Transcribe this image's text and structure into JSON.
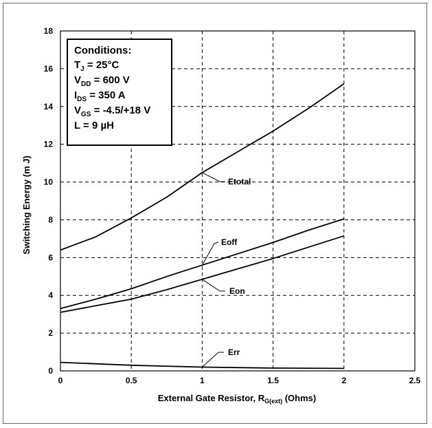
{
  "chart_data": {
    "type": "line",
    "title": "",
    "xlabel": {
      "main": "External Gate Resistor, R",
      "sub": "G(ext)",
      "suffix": " (Ohms)"
    },
    "ylabel": "Switching Energy (m J)",
    "xlim": [
      0,
      2.5
    ],
    "ylim": [
      0,
      18
    ],
    "x_ticks": [
      0,
      0.5,
      1,
      1.5,
      2,
      2.5
    ],
    "y_ticks": [
      0,
      2,
      4,
      6,
      8,
      10,
      12,
      14,
      16,
      18
    ],
    "x_tick_labels": [
      "0",
      "0.5",
      "1",
      "1.5",
      "2",
      "2.5"
    ],
    "y_tick_labels": [
      "0",
      "2",
      "4",
      "6",
      "8",
      "10",
      "12",
      "14",
      "16",
      "18"
    ],
    "grid": true,
    "series": [
      {
        "name": "Etotal",
        "x": [
          0,
          0.25,
          0.5,
          0.75,
          1,
          1.25,
          1.5,
          1.75,
          2
        ],
        "y": [
          6.4,
          7.1,
          8.1,
          9.2,
          10.5,
          11.6,
          12.7,
          13.9,
          15.2
        ]
      },
      {
        "name": "Eoff",
        "x": [
          0,
          0.25,
          0.5,
          0.75,
          1,
          1.25,
          1.5,
          1.75,
          2
        ],
        "y": [
          3.3,
          3.8,
          4.35,
          5.0,
          5.6,
          6.2,
          6.8,
          7.45,
          8.05
        ]
      },
      {
        "name": "Eon",
        "x": [
          0,
          0.25,
          0.5,
          0.75,
          1,
          1.25,
          1.5,
          1.75,
          2
        ],
        "y": [
          3.1,
          3.45,
          3.8,
          4.3,
          4.85,
          5.4,
          5.95,
          6.55,
          7.15
        ]
      },
      {
        "name": "Err",
        "x": [
          0,
          0.5,
          1,
          1.5,
          2
        ],
        "y": [
          0.45,
          0.3,
          0.2,
          0.15,
          0.13
        ]
      }
    ],
    "annotations": [
      {
        "text": "Etotal",
        "series": "Etotal"
      },
      {
        "text": "Eoff",
        "series": "Eoff"
      },
      {
        "text": "Eon",
        "series": "Eon"
      },
      {
        "text": "Err",
        "series": "Err"
      }
    ],
    "conditions": {
      "title": "Conditions:",
      "lines": [
        {
          "main": "T",
          "sub": "J",
          "rest": " = 25°C"
        },
        {
          "main": "V",
          "sub": "DD",
          "rest": " = 600 V"
        },
        {
          "main": "I",
          "sub": "DS",
          "rest": " = 350 A"
        },
        {
          "main": "V",
          "sub": "GS",
          "rest": " = -4.5/+18 V"
        },
        {
          "main": "L = 9 µH",
          "sub": "",
          "rest": ""
        }
      ]
    }
  }
}
